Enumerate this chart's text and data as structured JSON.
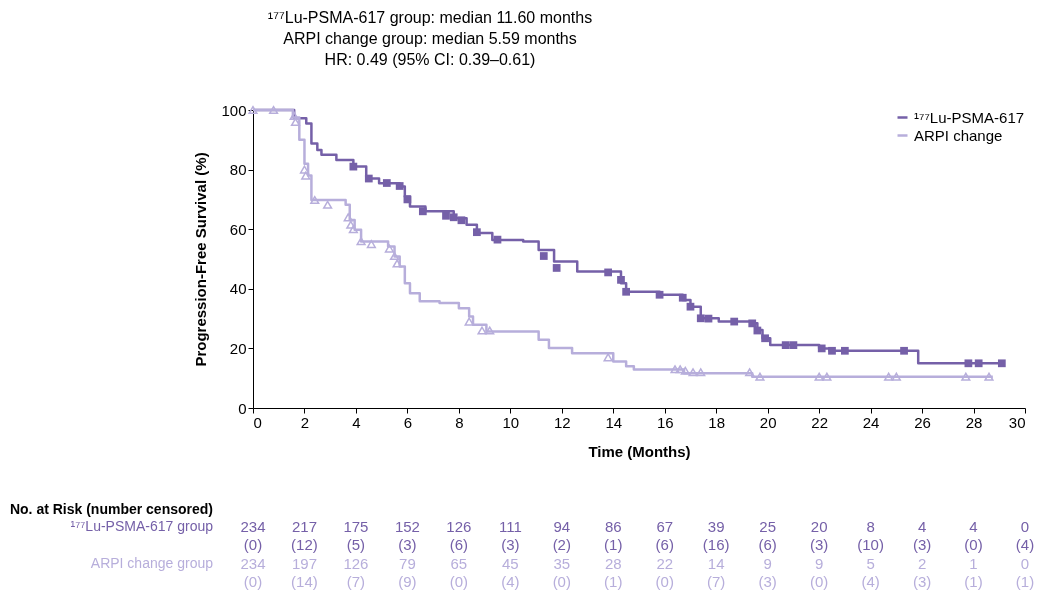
{
  "chart_data": {
    "type": "step",
    "xlabel": "Time (Months)",
    "ylabel": "Progression-Free Survival (%)",
    "xlim": [
      0,
      30
    ],
    "xticks": [
      0,
      2,
      4,
      6,
      8,
      10,
      12,
      14,
      16,
      18,
      20,
      22,
      24,
      26,
      28,
      30
    ],
    "ylim": [
      0,
      100
    ],
    "yticks": [
      0,
      20,
      40,
      60,
      80,
      100
    ],
    "grid": false,
    "legend": "top right",
    "line_style": "solid",
    "series": [
      {
        "name": "¹⁷⁷Lu-PSMA-617",
        "color": "#7560a8",
        "x": [
          0,
          1.6,
          2.07,
          2.27,
          2.5,
          2.66,
          3.24,
          3.9,
          4.4,
          4.9,
          5.7,
          5.9,
          6.1,
          6.7,
          7.8,
          8.3,
          8.7,
          9.3,
          10.5,
          11.1,
          11.7,
          12.6,
          14.3,
          14.5,
          15.8,
          16.7,
          17.0,
          17.4,
          18.1,
          19.4,
          19.6,
          19.8,
          20.1,
          22.0,
          22.4,
          25.85,
          29.1
        ],
        "values": [
          100,
          97.2,
          95.5,
          88.8,
          86.6,
          85,
          83.2,
          81,
          77,
          75.4,
          74.3,
          71,
          67.6,
          66,
          63.7,
          61.5,
          58.7,
          56.4,
          55.9,
          53,
          49.2,
          45.8,
          41.9,
          39,
          38,
          36.2,
          34,
          30.1,
          29,
          28.4,
          26.2,
          23.4,
          21.1,
          20,
          19.2,
          15,
          15
        ]
      },
      {
        "name": "ARPI change",
        "color": "#b7aedb",
        "x": [
          0,
          1.55,
          1.8,
          2.0,
          2.14,
          2.27,
          3.6,
          3.76,
          3.95,
          4.2,
          5.25,
          5.5,
          5.7,
          5.9,
          6.1,
          6.48,
          7.25,
          8.0,
          8.4,
          8.55,
          9.07,
          11.1,
          11.5,
          12.4,
          14.0,
          14.5,
          14.8,
          16.75,
          19.4,
          28.75
        ],
        "values": [
          100,
          97.5,
          90,
          82,
          78,
          69.8,
          68.2,
          63.1,
          59.8,
          55.9,
          54.2,
          50.8,
          47.5,
          41.9,
          38.5,
          35.8,
          35.2,
          33.5,
          30.7,
          27.9,
          25.7,
          22.9,
          20.1,
          18.4,
          15.6,
          14,
          12.9,
          11.7,
          10.5,
          10.5
        ]
      },
      {
        "color": "#7560a8",
        "type": "scatter",
        "marker": "square",
        "x": [
          3.9,
          4.5,
          5.2,
          5.7,
          6.0,
          6.6,
          7.5,
          7.8,
          8.1,
          8.7,
          9.5,
          11.3,
          11.8,
          13.8,
          14.3,
          14.5,
          15.8,
          16.7,
          17.0,
          17.4,
          17.7,
          18.7,
          19.4,
          19.6,
          19.9,
          20.7,
          21.0,
          22.1,
          22.5,
          23.0,
          25.3,
          27.8,
          28.2,
          29.1
        ],
        "values": [
          81,
          77,
          75.5,
          74.5,
          70,
          66,
          64.5,
          64,
          63,
          59,
          56.5,
          51,
          47,
          45.5,
          43,
          39,
          38,
          37,
          34,
          30.1,
          30,
          29,
          28.4,
          26,
          23.4,
          21.1,
          21.1,
          20,
          19.2,
          19.2,
          19.2,
          15,
          15,
          15
        ]
      },
      {
        "color": "#b7aedb",
        "type": "scatter",
        "marker": "triangle",
        "x": [
          0,
          0.8,
          1.6,
          1.65,
          2.0,
          2.05,
          2.4,
          2.9,
          3.7,
          3.8,
          3.9,
          4.2,
          4.6,
          5.3,
          5.5,
          5.6,
          8.4,
          8.9,
          9.2,
          13.8,
          16.4,
          16.6,
          16.8,
          17.1,
          17.4,
          19.3,
          19.7,
          22.0,
          22.3,
          24.7,
          25.0,
          27.7,
          28.6
        ],
        "values": [
          100,
          100,
          98,
          96,
          80,
          78,
          69.8,
          68.2,
          64,
          61.5,
          60,
          56,
          55,
          53.5,
          51,
          48.5,
          29,
          26,
          26,
          17,
          13,
          13,
          12.5,
          12,
          12,
          12,
          10.5,
          10.5,
          10.5,
          10.5,
          10.5,
          10.5,
          10.5
        ]
      }
    ],
    "annotations": [
      "¹⁷⁷Lu-PSMA-617 group: median 11.60 months",
      "ARPI change group: median 5.59 months",
      "HR: 0.49 (95% CI: 0.39–0.61)",
      "No. at Risk (number censored)",
      "¹⁷⁷Lu-PSMA-617 group",
      "234 217 175 152 126 111 94 86 67 39 25 20 8 4 4 0",
      "(0) (12) (5) (3) (6) (3) (2) (1) (6) (16) (6) (3) (10) (3) (0) (4)",
      "ARPI change group",
      "234 197 126 79 65 45 35 28 22 14 9 9 5 2 1 0",
      "(0) (14) (7) (9) (0) (4) (0) (1) (0) (7) (3) (0) (4) (3) (1) (1)"
    ]
  }
}
